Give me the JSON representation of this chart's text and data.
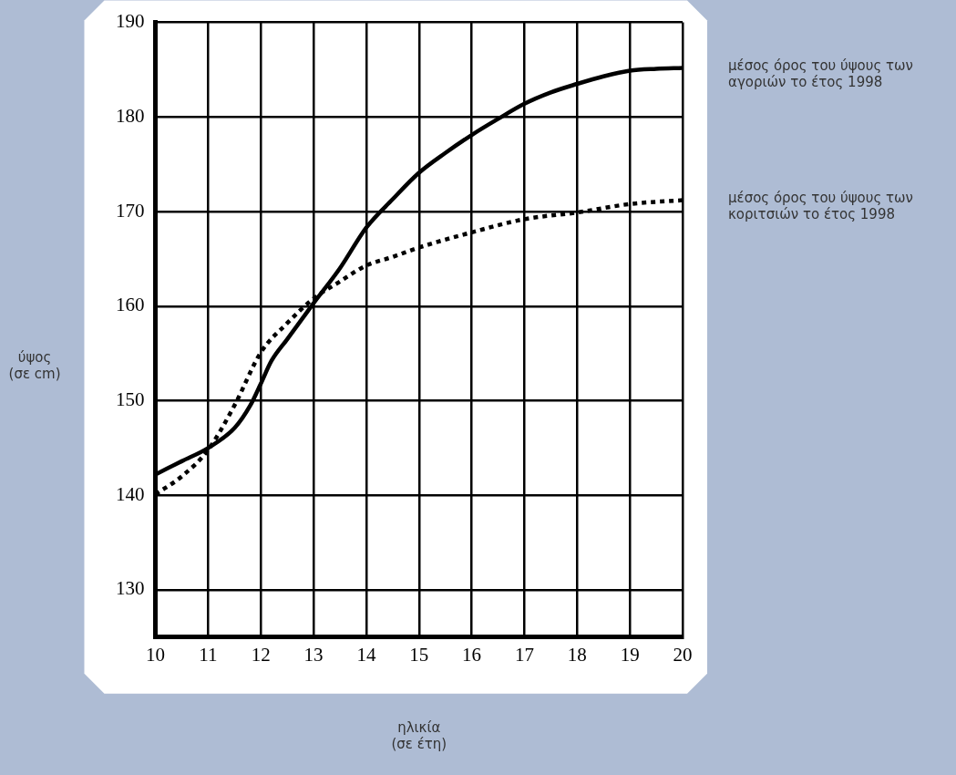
{
  "chart_data": {
    "type": "line",
    "xlabel": "ηλικία (σε έτη)",
    "ylabel": "ύψος (σε cm)",
    "xlim": [
      10,
      20
    ],
    "xticks": [
      10,
      11,
      12,
      13,
      14,
      15,
      16,
      17,
      18,
      19,
      20
    ],
    "ylim": [
      125,
      190
    ],
    "yticks": [
      130,
      140,
      150,
      160,
      170,
      180,
      190
    ],
    "grid": true,
    "legend": false,
    "marker": "none",
    "series": [
      {
        "name": "μέσος όρος του ύψους των αγοριών το έτος 1998",
        "color": "#000000",
        "line_style": "solid",
        "x": [
          10,
          10.5,
          11,
          11.5,
          11.8,
          12,
          12.2,
          12.5,
          13,
          13.5,
          14,
          14.5,
          15,
          15.5,
          16,
          16.5,
          17,
          17.5,
          18,
          18.5,
          19,
          19.5,
          20
        ],
        "values": [
          142.2,
          143.6,
          145.0,
          147.1,
          149.5,
          151.8,
          154.2,
          156.5,
          160.3,
          164.0,
          168.3,
          171.3,
          174.1,
          176.2,
          178.1,
          179.8,
          181.4,
          182.6,
          183.5,
          184.3,
          184.9,
          185.1,
          185.2
        ]
      },
      {
        "name": "μέσος όρος του ύψους των κοριτσιών το έτος 1998",
        "color": "#000000",
        "line_style": "dotted",
        "x": [
          10,
          10.5,
          11,
          11.5,
          12,
          12.5,
          13,
          13.5,
          14,
          14.5,
          15,
          16,
          17,
          18,
          19,
          20
        ],
        "values": [
          140.1,
          142.0,
          144.8,
          149.5,
          155.1,
          158.2,
          160.8,
          162.6,
          164.3,
          165.2,
          166.2,
          167.8,
          169.2,
          169.9,
          170.8,
          171.2
        ]
      }
    ]
  }
}
